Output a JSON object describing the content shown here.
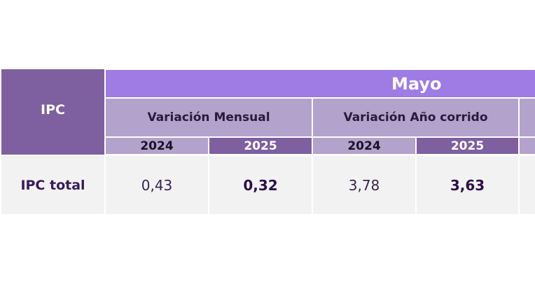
{
  "table": {
    "row_header_label": "IPC",
    "month": "Mayo",
    "variations": [
      {
        "label": "Variación Mensual",
        "years": [
          "2024",
          "2025"
        ]
      },
      {
        "label": "Variación Año corrido",
        "years": [
          "2024",
          "2025"
        ]
      }
    ],
    "rows": [
      {
        "label": "IPC total",
        "values": [
          "0,43",
          "0,32",
          "3,78",
          "3,63"
        ]
      }
    ]
  },
  "colors": {
    "header_dark": "#7e5fa0",
    "header_month": "#9f7be4",
    "header_light": "#b3a2cc",
    "row_background": "#f2f2f2"
  }
}
